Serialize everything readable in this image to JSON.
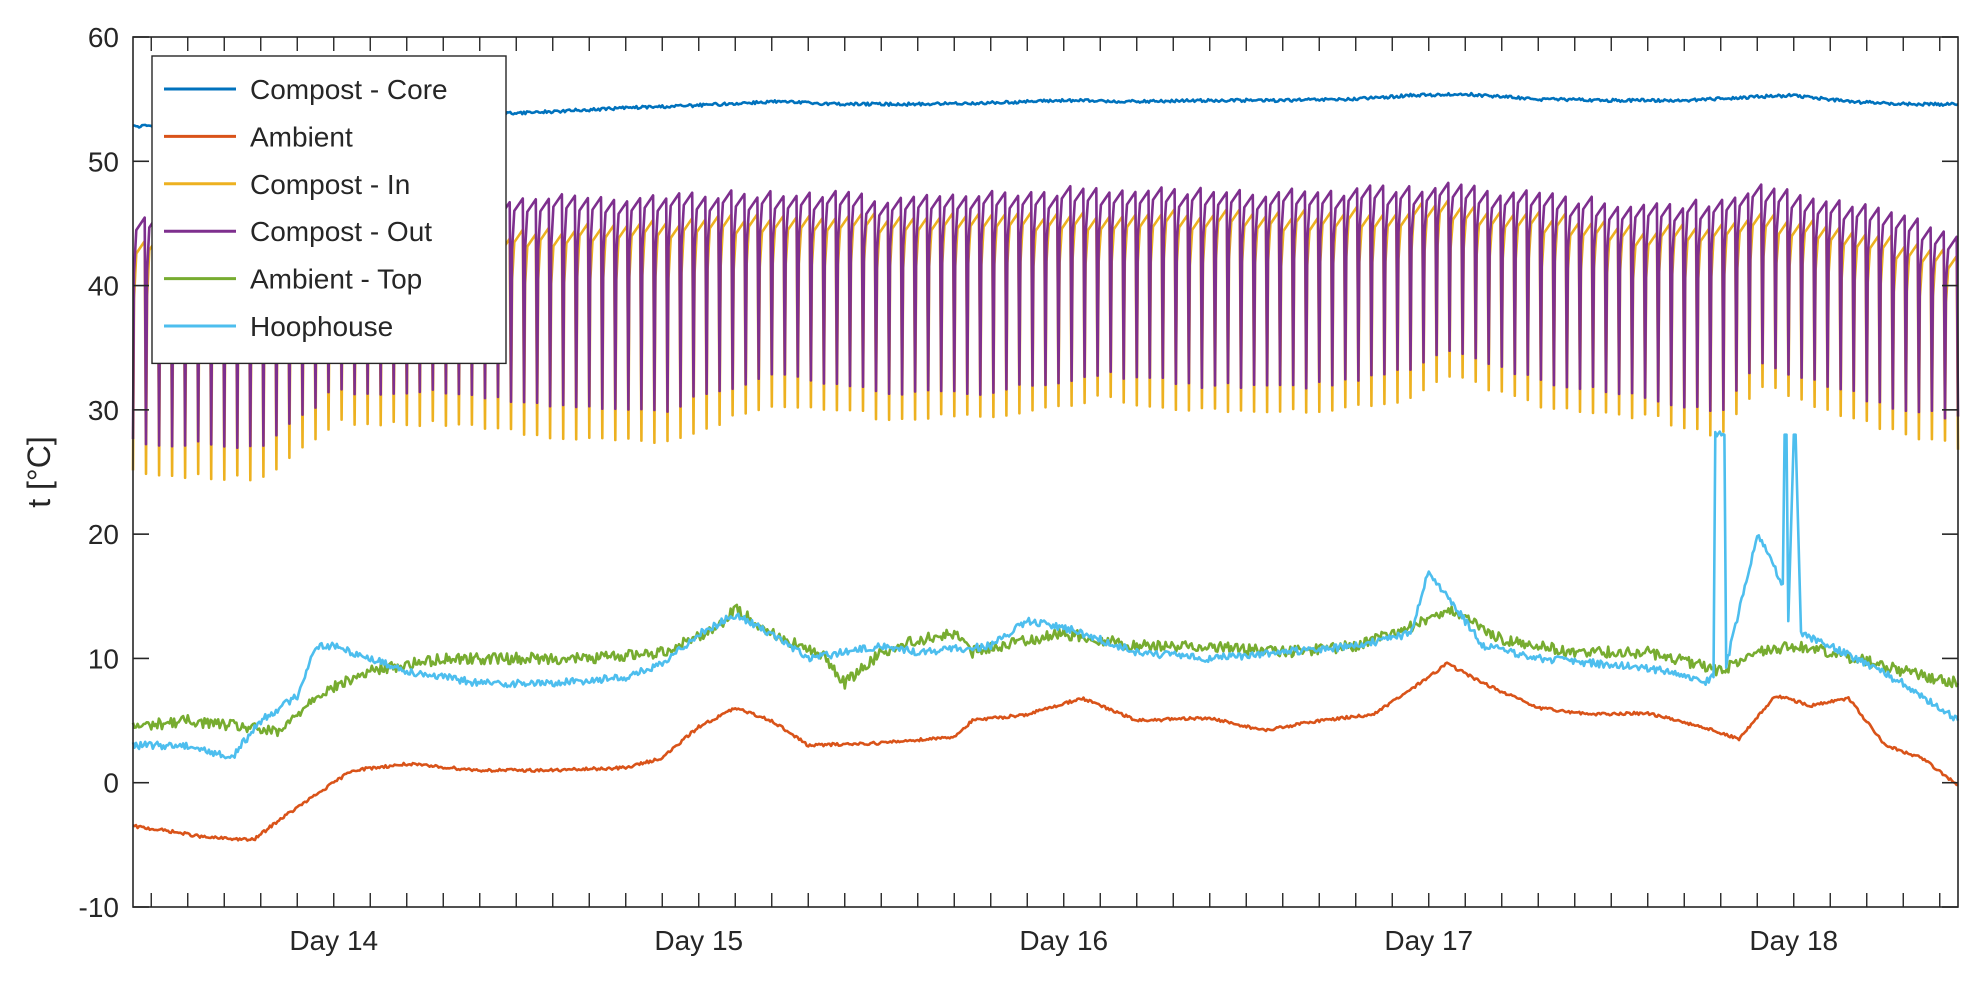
{
  "chart_data": {
    "type": "line",
    "title": "",
    "xlabel": "",
    "ylabel": "t [°C]",
    "xlim": [
      13.45,
      18.45
    ],
    "ylim": [
      -10,
      60
    ],
    "x_ticks": [
      {
        "value": 14,
        "label": "Day 14"
      },
      {
        "value": 15,
        "label": "Day 15"
      },
      {
        "value": 16,
        "label": "Day 16"
      },
      {
        "value": 17,
        "label": "Day 17"
      },
      {
        "value": 18,
        "label": "Day 18"
      }
    ],
    "y_ticks": [
      -10,
      0,
      10,
      20,
      30,
      40,
      50,
      60
    ],
    "grid": false,
    "legend_position": "top-left",
    "series": [
      {
        "name": "Compost - Core",
        "color": "#0072BD",
        "x": [
          13.45,
          13.6,
          13.75,
          13.9,
          14.0,
          14.2,
          14.4,
          14.6,
          14.8,
          15.0,
          15.2,
          15.4,
          15.6,
          15.8,
          16.0,
          16.2,
          16.4,
          16.6,
          16.8,
          16.95,
          17.1,
          17.3,
          17.5,
          17.7,
          17.9,
          18.0,
          18.15,
          18.3,
          18.45
        ],
        "y": [
          52.8,
          52.9,
          53.2,
          53.5,
          53.7,
          53.9,
          53.8,
          54.0,
          54.3,
          54.5,
          54.8,
          54.6,
          54.6,
          54.7,
          54.9,
          54.8,
          54.9,
          54.9,
          55.0,
          55.3,
          55.4,
          55.0,
          54.9,
          54.9,
          55.2,
          55.3,
          54.8,
          54.6,
          54.6
        ]
      },
      {
        "name": "Ambient",
        "color": "#D95319",
        "x": [
          13.45,
          13.55,
          13.65,
          13.78,
          13.85,
          13.95,
          14.05,
          14.2,
          14.4,
          14.6,
          14.8,
          14.9,
          15.0,
          15.1,
          15.2,
          15.3,
          15.5,
          15.7,
          15.75,
          15.9,
          16.05,
          16.2,
          16.4,
          16.55,
          16.7,
          16.85,
          17.0,
          17.05,
          17.15,
          17.3,
          17.45,
          17.6,
          17.75,
          17.85,
          17.95,
          18.05,
          18.15,
          18.25,
          18.35,
          18.45
        ],
        "y": [
          -3.5,
          -3.9,
          -4.4,
          -4.6,
          -3.0,
          -1.0,
          1.0,
          1.5,
          1.0,
          1.0,
          1.2,
          2.0,
          4.5,
          6.0,
          5.0,
          3.0,
          3.2,
          3.7,
          5.0,
          5.5,
          6.8,
          5.0,
          5.2,
          4.2,
          5.0,
          5.5,
          8.5,
          9.6,
          8.0,
          6.0,
          5.5,
          5.6,
          4.5,
          3.5,
          7.0,
          6.2,
          6.8,
          3.0,
          2.0,
          -0.2
        ]
      },
      {
        "name": "Compost - In",
        "color": "#EDB120",
        "x": [
          13.45,
          13.8,
          14.0,
          14.3,
          14.6,
          14.9,
          15.2,
          15.5,
          15.8,
          16.1,
          16.4,
          16.7,
          16.95,
          17.05,
          17.3,
          17.6,
          17.8,
          17.9,
          18.1,
          18.3,
          18.45
        ],
        "y_high": [
          44.0,
          42.0,
          42.5,
          43.5,
          44.5,
          45.0,
          45.5,
          45.5,
          45.6,
          45.8,
          45.8,
          45.8,
          46.2,
          46.5,
          45.8,
          44.5,
          45.0,
          45.5,
          45.0,
          43.5,
          42.5
        ],
        "y_low": [
          25.0,
          24.5,
          29.0,
          29.0,
          28.0,
          27.5,
          30.5,
          29.5,
          29.5,
          31.0,
          30.0,
          30.0,
          31.0,
          33.0,
          30.5,
          29.5,
          28.0,
          32.0,
          30.0,
          28.0,
          27.0
        ],
        "cycles_per_day": 28
      },
      {
        "name": "Compost - Out",
        "color": "#7E2F8E",
        "x": [
          13.45,
          13.8,
          14.0,
          14.3,
          14.6,
          14.9,
          15.2,
          15.5,
          15.8,
          16.1,
          16.4,
          16.7,
          16.95,
          17.05,
          17.3,
          17.6,
          17.8,
          17.9,
          18.1,
          18.3,
          18.45
        ],
        "y_high": [
          46.0,
          44.5,
          45.5,
          46.5,
          47.0,
          47.0,
          47.5,
          47.0,
          47.2,
          47.8,
          47.5,
          47.5,
          47.8,
          48.0,
          47.2,
          46.5,
          46.5,
          47.8,
          46.8,
          45.5,
          44.0
        ],
        "y_low": [
          27.5,
          27.0,
          31.5,
          31.5,
          30.5,
          30.0,
          33.0,
          31.5,
          31.5,
          33.0,
          32.0,
          32.0,
          33.5,
          35.0,
          32.5,
          31.0,
          30.0,
          34.0,
          32.0,
          30.0,
          29.5
        ],
        "cycles_per_day": 28
      },
      {
        "name": "Ambient - Top",
        "color": "#77AC30",
        "x": [
          13.45,
          13.6,
          13.75,
          13.85,
          13.95,
          14.1,
          14.3,
          14.5,
          14.7,
          14.9,
          15.05,
          15.1,
          15.2,
          15.35,
          15.4,
          15.5,
          15.6,
          15.7,
          15.75,
          15.9,
          16.0,
          16.2,
          16.4,
          16.6,
          16.8,
          16.95,
          17.05,
          17.2,
          17.4,
          17.6,
          17.8,
          17.9,
          18.0,
          18.1,
          18.3,
          18.45
        ],
        "y": [
          4.5,
          5.0,
          4.5,
          4.0,
          7.0,
          9.0,
          10.0,
          10.0,
          10.0,
          10.5,
          12.5,
          14.0,
          12.0,
          10.0,
          8.0,
          10.5,
          11.5,
          12.0,
          10.5,
          11.5,
          12.0,
          11.0,
          11.0,
          10.5,
          11.0,
          12.5,
          14.0,
          11.5,
          10.5,
          10.5,
          9.0,
          10.5,
          11.0,
          10.5,
          9.0,
          8.0
        ]
      },
      {
        "name": "Hoophouse",
        "color": "#4DBEEE",
        "x": [
          13.45,
          13.6,
          13.72,
          13.8,
          13.9,
          13.95,
          14.0,
          14.2,
          14.4,
          14.6,
          14.8,
          14.9,
          15.0,
          15.1,
          15.2,
          15.3,
          15.4,
          15.5,
          15.6,
          15.8,
          15.9,
          16.0,
          16.2,
          16.4,
          16.6,
          16.8,
          16.95,
          17.0,
          17.05,
          17.15,
          17.3,
          17.5,
          17.65,
          17.75,
          17.78,
          17.785,
          17.81,
          17.815,
          17.9,
          17.97,
          17.975,
          17.98,
          17.985,
          18.0,
          18.005,
          18.02,
          18.1,
          18.3,
          18.45
        ],
        "y": [
          3.0,
          3.0,
          2.0,
          5.0,
          7.0,
          11.0,
          11.0,
          9.0,
          8.0,
          8.0,
          8.5,
          9.5,
          12.0,
          13.5,
          12.0,
          10.0,
          10.5,
          11.0,
          10.5,
          11.0,
          13.0,
          12.5,
          10.5,
          10.0,
          10.5,
          11.0,
          12.0,
          17.0,
          15.0,
          11.0,
          10.0,
          9.5,
          9.0,
          8.0,
          8.5,
          28.0,
          28.0,
          9.5,
          20.0,
          16.0,
          28.0,
          28.0,
          13.0,
          28.0,
          28.0,
          12.0,
          11.0,
          8.0,
          5.0
        ]
      }
    ]
  }
}
